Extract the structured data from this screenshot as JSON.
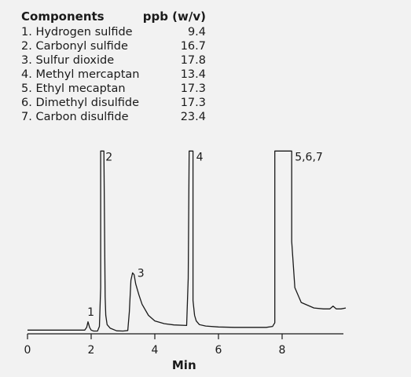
{
  "table": {
    "header": {
      "component": "Components",
      "unit": "ppb (w/v)"
    },
    "rows": [
      {
        "name": "1. Hydrogen sulfide",
        "value": "9.4"
      },
      {
        "name": "2. Carbonyl sulfide",
        "value": "16.7"
      },
      {
        "name": "3. Sulfur dioxide",
        "value": "17.8"
      },
      {
        "name": "4. Methyl mercaptan",
        "value": "13.4"
      },
      {
        "name": "5. Ethyl mecaptan",
        "value": "17.3"
      },
      {
        "name": "6. Dimethyl disulfide",
        "value": "17.3"
      },
      {
        "name": "7. Carbon disulfide",
        "value": "23.4"
      }
    ]
  },
  "chart_data": {
    "type": "line",
    "xlabel": "Min",
    "ylabel": "",
    "xlim": [
      0,
      10
    ],
    "ylim": [
      0,
      100
    ],
    "xticks": [
      0,
      2,
      4,
      6,
      8
    ],
    "grid": false,
    "peak_labels": [
      {
        "text": "1",
        "x": 1.88,
        "y": 12
      },
      {
        "text": "2",
        "x": 2.45,
        "y": 96
      },
      {
        "text": "3",
        "x": 3.45,
        "y": 33
      },
      {
        "text": "4",
        "x": 5.3,
        "y": 96
      },
      {
        "text": "5,6,7",
        "x": 8.4,
        "y": 96
      }
    ],
    "series": [
      {
        "x": [
          0,
          1.8,
          1.86,
          1.9,
          1.95,
          2.0,
          2.08,
          2.2,
          2.26,
          2.3,
          2.3,
          2.4,
          2.44,
          2.46,
          2.5,
          2.6,
          2.8,
          3.0,
          3.15,
          3.2,
          3.25,
          3.3,
          3.35,
          3.4,
          3.5,
          3.6,
          3.8,
          4.0,
          4.3,
          4.6,
          5.0,
          5.05,
          5.08,
          5.08,
          5.2,
          5.2,
          5.25,
          5.3,
          5.4,
          5.6,
          6.0,
          6.5,
          7.0,
          7.5,
          7.7,
          7.77,
          7.77,
          8.3,
          8.3,
          8.4,
          8.6,
          9.0,
          9.3,
          9.5,
          9.6,
          9.7,
          9.85,
          10.0
        ],
        "y": [
          2,
          2,
          3.5,
          6.5,
          3.5,
          2,
          1.5,
          1.5,
          4,
          25,
          99,
          99,
          20,
          10,
          5,
          3,
          1.6,
          1.5,
          1.8,
          12,
          29,
          33,
          32,
          27,
          21,
          16,
          10,
          7,
          5.5,
          4.8,
          4.5,
          30,
          99,
          99,
          99,
          18,
          10,
          7,
          5,
          4.2,
          3.7,
          3.5,
          3.5,
          3.5,
          4,
          6,
          99,
          99,
          50,
          25,
          17,
          14,
          13.5,
          13.5,
          15,
          13.5,
          13.5,
          14
        ]
      }
    ]
  }
}
